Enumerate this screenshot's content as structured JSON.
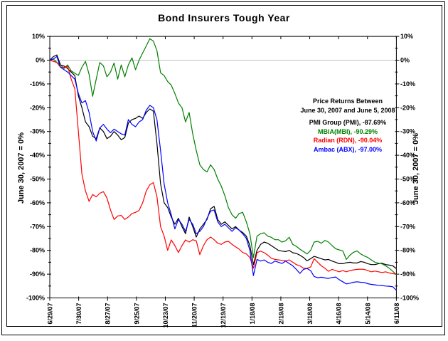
{
  "chart_data": {
    "type": "line",
    "title": "Bond Insurers Tough Year",
    "axis_caption_left": "June 30, 2007 = 0%",
    "axis_caption_right": "June 30, 2007 = 0%",
    "ylim": [
      -100,
      10
    ],
    "y_major_step_pct": 10,
    "y_minor_step_pct": 5,
    "y_tick_labels": [
      "10%",
      "0%",
      "-10%",
      "-20%",
      "-30%",
      "-40%",
      "-50%",
      "-60%",
      "-70%",
      "-80%",
      "-90%",
      "-100%"
    ],
    "x_tick_labels": [
      "6/29/07",
      "7/30/07",
      "8/27/07",
      "9/25/07",
      "10/23/07",
      "11/20/07",
      "12/19/07",
      "1/18/08",
      "2/19/08",
      "3/18/08",
      "4/16/08",
      "5/14/08",
      "6/11/08"
    ],
    "gridlines": [
      "0%"
    ],
    "zero_gridline_color": "#C0C0C0",
    "axis_color": "#000000",
    "background_color": "#FFFFFF",
    "legend": {
      "heading_line1": "Price Returns Between",
      "heading_line2": "June 30, 2007 and June 5, 2008",
      "position": "inside-upper-right"
    },
    "x_sampling": "98 evenly spaced points from 6/29/07 to 6/11/08, percent return vs June 30, 2007",
    "series": [
      {
        "id": "pmi",
        "name": "PMI Group (PMI)",
        "legend_label": "PMI Group (PMI), -87.69%",
        "final_return_pct": -87.69,
        "color": "#000000",
        "values": [
          0,
          1.5,
          2.2,
          -2,
          -2.5,
          -3.5,
          -5,
          -6.5,
          -15,
          -20,
          -26,
          -28,
          -32,
          -33,
          -28.5,
          -30,
          -33,
          -32,
          -30,
          -31.5,
          -33.5,
          -32.5,
          -26.5,
          -25,
          -24.5,
          -23.5,
          -24.5,
          -22,
          -20.5,
          -21.5,
          -35,
          -52,
          -60,
          -62,
          -66,
          -69,
          -66.5,
          -70,
          -73,
          -66,
          -70,
          -74.4,
          -71,
          -69,
          -67,
          -62.5,
          -61.5,
          -67,
          -69,
          -68,
          -69.5,
          -71,
          -70,
          -71.5,
          -72.5,
          -74,
          -78,
          -86,
          -80,
          -77.5,
          -76.5,
          -77,
          -78,
          -79,
          -80,
          -80.3,
          -80.5,
          -80,
          -81,
          -81.3,
          -82,
          -83,
          -84.4,
          -83.5,
          -82.5,
          -83,
          -83.5,
          -84,
          -83.8,
          -84.5,
          -85,
          -85.6,
          -85.6,
          -85.2,
          -85,
          -85.3,
          -85.3,
          -84.7,
          -85,
          -85.6,
          -86,
          -86,
          -85.6,
          -85.4,
          -86,
          -86.2,
          -86.5,
          -87.7
        ]
      },
      {
        "id": "mbia",
        "name": "MBIA (MBI)",
        "legend_label": "MBIA(MBI), -90.29%",
        "final_return_pct": -90.29,
        "color": "#008000",
        "values": [
          0,
          0.5,
          -1,
          -2,
          -3.5,
          -2,
          -4.5,
          -5.5,
          -6.4,
          -3,
          -0.5,
          -6,
          -15.2,
          -8,
          -1,
          -2.4,
          -7,
          -5,
          -1.2,
          -8,
          -2,
          -7,
          -2,
          1,
          -4,
          0,
          3,
          6,
          9,
          8,
          4,
          -5.3,
          -6.5,
          -9,
          -10.5,
          -14,
          -18,
          -20,
          -26,
          -22,
          -31,
          -38,
          -44,
          -46,
          -47,
          -44,
          -46,
          -50,
          -53,
          -57,
          -62,
          -65,
          -66.5,
          -64.5,
          -64,
          -68,
          -73,
          -83,
          -74,
          -73,
          -72.6,
          -74,
          -74.5,
          -75.5,
          -75.5,
          -76.5,
          -76,
          -74.5,
          -77.5,
          -78.3,
          -79.5,
          -80.5,
          -81.5,
          -80,
          -76.5,
          -76.2,
          -77,
          -75.8,
          -76.5,
          -78,
          -79.3,
          -79.8,
          -80.2,
          -83.8,
          -82,
          -80.8,
          -80.2,
          -81.5,
          -82.3,
          -83,
          -84,
          -85,
          -85.4,
          -85.7,
          -86.5,
          -87.5,
          -88.8,
          -90.3
        ]
      },
      {
        "id": "rdn",
        "name": "Radian (RDN)",
        "legend_label": "Radian (RDN), -90.04%",
        "final_return_pct": -90.04,
        "color": "#FF0000",
        "values": [
          0,
          -0.5,
          -1,
          -3,
          -3,
          -2.5,
          -8,
          -12,
          -30,
          -48,
          -55,
          -59.4,
          -56.5,
          -57.5,
          -56,
          -55.3,
          -58,
          -63,
          -67,
          -65.5,
          -65.3,
          -67,
          -66,
          -64.5,
          -64,
          -63.2,
          -60,
          -55,
          -52.4,
          -51.5,
          -57.4,
          -70,
          -74,
          -80,
          -75.6,
          -78,
          -80.9,
          -78,
          -75.6,
          -76.5,
          -75.5,
          -76,
          -81.8,
          -78,
          -75.5,
          -74.4,
          -75.5,
          -77,
          -77.5,
          -76.5,
          -76.2,
          -77.5,
          -78.5,
          -79.5,
          -80.9,
          -81.5,
          -83,
          -87.5,
          -81,
          -80.3,
          -81,
          -82,
          -83.3,
          -83.8,
          -84,
          -84.2,
          -84.4,
          -84,
          -85,
          -86,
          -86.5,
          -87.5,
          -87.5,
          -87,
          -83.5,
          -85,
          -86.5,
          -87.5,
          -88.8,
          -88,
          -88.5,
          -89,
          -88.5,
          -89,
          -88.5,
          -88.2,
          -88,
          -87.9,
          -88,
          -88.5,
          -89,
          -88.7,
          -89,
          -89.3,
          -89,
          -89.5,
          -89.8,
          -90
        ]
      },
      {
        "id": "abx",
        "name": "Ambac (ABX)",
        "legend_label": "Ambac (ABX), -97.00%",
        "final_return_pct": -97.0,
        "color": "#0000FF",
        "values": [
          0,
          0.5,
          1.5,
          -3,
          -4,
          -5,
          -6.5,
          -8,
          -14,
          -18,
          -17,
          -22,
          -30,
          -34,
          -28.5,
          -27,
          -29,
          -30.5,
          -29,
          -30,
          -31,
          -31.5,
          -25,
          -27,
          -28,
          -26,
          -25,
          -21,
          -19,
          -20,
          -25,
          -38,
          -52,
          -60,
          -65,
          -71,
          -67,
          -69,
          -72,
          -67,
          -69,
          -73,
          -72,
          -70,
          -66.5,
          -63.5,
          -63,
          -68,
          -70,
          -69,
          -70.5,
          -72,
          -70.5,
          -71.5,
          -73,
          -75,
          -80,
          -90.6,
          -83.8,
          -84.5,
          -84,
          -85,
          -85.5,
          -84.5,
          -85,
          -85.5,
          -84.5,
          -85.5,
          -86.5,
          -88,
          -89.7,
          -88,
          -87.6,
          -88.5,
          -91,
          -91.5,
          -91.3,
          -91.6,
          -91.8,
          -91.4,
          -91.2,
          -92.3,
          -93.2,
          -94.1,
          -93.8,
          -93.4,
          -93.2,
          -93.4,
          -93.5,
          -94,
          -94.3,
          -94.5,
          -94.7,
          -94.8,
          -95,
          -95.1,
          -95.3,
          -96.8
        ]
      }
    ]
  }
}
